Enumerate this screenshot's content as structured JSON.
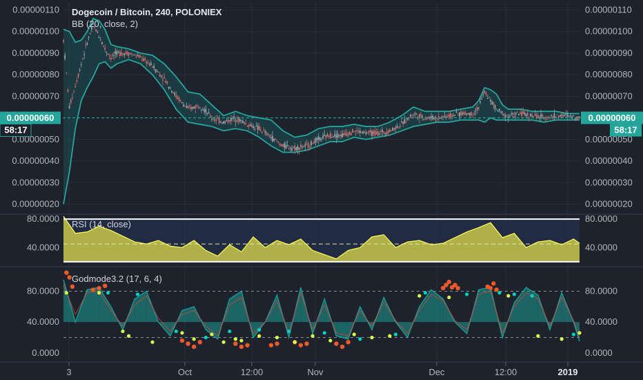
{
  "header": {
    "symbol_title": "Dogecoin / Bitcoin, 240, POLONIEX",
    "bb_label": "BB (20, close, 2)",
    "rsi_label": "RSI (14, close)",
    "godmode_label": "Godmode3.2 (17, 6, 4)"
  },
  "price_badge": {
    "price": "0.00000060",
    "countdown": "58:17",
    "color": "#26a69a"
  },
  "colors": {
    "background": "#1e222d",
    "grid": "#2a2e39",
    "text": "#b2b5be",
    "bb_band": "#26a69a",
    "bb_fill": "#1c4f52",
    "rsi_line": "#ffff5a",
    "rsi_fill": "#c8c84a",
    "rsi_levels": "#ffffff",
    "god_wave": "#1b9a93",
    "god_signal": "#d64534",
    "dot_overbought": "#f05a28",
    "dot_oversold": "#d6ff4d",
    "dot_cyan": "#00d1c1"
  },
  "x_axis": {
    "ticks": [
      "3",
      "Oct",
      "12:00",
      "Nov",
      "Dec",
      "12:00",
      "2019"
    ]
  },
  "chart_data": [
    {
      "type": "line",
      "name": "price",
      "ylim": [
        1.6e-07,
        1.13e-06
      ],
      "y_tick_labels": [
        "0.00000110",
        "0.00000100",
        "0.00000090",
        "0.00000080",
        "0.00000070",
        "0.00000050",
        "0.00000040",
        "0.00000030",
        "0.00000020"
      ],
      "y_ticks": [
        1.1e-06,
        1e-06,
        9e-07,
        8e-07,
        7e-07,
        5e-07,
        4e-07,
        3e-07,
        2e-07
      ],
      "current_price": 6e-07,
      "x": [
        0,
        2,
        4,
        6,
        8,
        10,
        12,
        14,
        16,
        18,
        22,
        26,
        30,
        34,
        38,
        42,
        46,
        50,
        54,
        58,
        62,
        66,
        70,
        74,
        78,
        82,
        86,
        90,
        94,
        98,
        102,
        106,
        110,
        114,
        118,
        122,
        126,
        130,
        134,
        138,
        140,
        142,
        144,
        146,
        148,
        150,
        154,
        158,
        162,
        166,
        170,
        174
      ],
      "series": [
        {
          "values": [
            9.6e-07,
            6.5e-07,
            7.5e-07,
            8.5e-07,
            9.5e-07,
            1.03e-06,
            9.8e-07,
            9.2e-07,
            8.8e-07,
            9e-07,
            9e-07,
            8.8e-07,
            8.4e-07,
            7.8e-07,
            7e-07,
            6.4e-07,
            6.6e-07,
            6e-07,
            5.8e-07,
            6e-07,
            5.7e-07,
            5.5e-07,
            5.1e-07,
            4.7e-07,
            4.6e-07,
            4.7e-07,
            5e-07,
            5.2e-07,
            5.2e-07,
            5.4e-07,
            5.3e-07,
            5.3e-07,
            5.4e-07,
            5.7e-07,
            6.2e-07,
            6e-07,
            6e-07,
            6.1e-07,
            6.2e-07,
            6.2e-07,
            6.5e-07,
            7.2e-07,
            6.8e-07,
            6.4e-07,
            6.2e-07,
            6.1e-07,
            6.2e-07,
            6.1e-07,
            6e-07,
            6.1e-07,
            6.1e-07,
            6e-07
          ]
        },
        {
          "name": "upper",
          "values": [
            1.01e-06,
            1e-06,
            9.5e-07,
            9.6e-07,
            1e-06,
            1.06e-06,
            1.05e-06,
            1.01e-06,
            9.4e-07,
            9.3e-07,
            9.2e-07,
            9e-07,
            8.9e-07,
            8.5e-07,
            7.9e-07,
            7.2e-07,
            7.1e-07,
            6.6e-07,
            6.1e-07,
            6.3e-07,
            6.1e-07,
            6e-07,
            5.9e-07,
            5.4e-07,
            5.1e-07,
            5.2e-07,
            5.5e-07,
            5.6e-07,
            5.6e-07,
            5.7e-07,
            5.6e-07,
            5.6e-07,
            5.8e-07,
            6.1e-07,
            6.5e-07,
            6.3e-07,
            6.3e-07,
            6.3e-07,
            6.4e-07,
            6.5e-07,
            6.8e-07,
            7.4e-07,
            7.3e-07,
            7.1e-07,
            6.6e-07,
            6.4e-07,
            6.4e-07,
            6.3e-07,
            6.3e-07,
            6.3e-07,
            6.2e-07,
            6.2e-07
          ]
        },
        {
          "name": "lower",
          "values": [
            2e-07,
            3.5e-07,
            5.5e-07,
            6.8e-07,
            7.4e-07,
            7.9e-07,
            8.5e-07,
            8.6e-07,
            8.3e-07,
            8.5e-07,
            8.7e-07,
            8.5e-07,
            8e-07,
            7.3e-07,
            6.4e-07,
            5.8e-07,
            5.7e-07,
            5.6e-07,
            5.4e-07,
            5.5e-07,
            5.4e-07,
            5.1e-07,
            4.7e-07,
            4.4e-07,
            4.4e-07,
            4.5e-07,
            4.7e-07,
            4.9e-07,
            4.9e-07,
            5.1e-07,
            5e-07,
            5.1e-07,
            5.2e-07,
            5.4e-07,
            5.6e-07,
            5.7e-07,
            5.8e-07,
            5.8e-07,
            5.9e-07,
            5.9e-07,
            5.9e-07,
            5.8e-07,
            6e-07,
            5.9e-07,
            5.9e-07,
            5.9e-07,
            5.9e-07,
            5.9e-07,
            5.8e-07,
            5.9e-07,
            5.9e-07,
            5.9e-07
          ]
        }
      ]
    },
    {
      "type": "area",
      "name": "RSI",
      "ylim": [
        15,
        85
      ],
      "y_tick_labels": [
        "80.0000",
        "40.0000"
      ],
      "y_ticks": [
        80,
        40
      ],
      "levels": [
        80,
        20
      ],
      "mid": 45,
      "x": [
        0,
        4,
        8,
        12,
        16,
        20,
        24,
        28,
        32,
        36,
        40,
        44,
        48,
        52,
        56,
        60,
        64,
        68,
        72,
        76,
        80,
        84,
        88,
        92,
        96,
        100,
        104,
        108,
        112,
        116,
        120,
        124,
        128,
        132,
        136,
        140,
        144,
        148,
        152,
        156,
        160,
        164,
        168,
        172,
        174
      ],
      "values": [
        84,
        60,
        62,
        70,
        64,
        56,
        48,
        45,
        50,
        42,
        40,
        50,
        36,
        28,
        44,
        34,
        55,
        40,
        50,
        44,
        52,
        36,
        30,
        24,
        36,
        40,
        55,
        58,
        40,
        48,
        50,
        44,
        46,
        54,
        62,
        68,
        75,
        54,
        60,
        40,
        48,
        50,
        44,
        52,
        46
      ]
    },
    {
      "type": "line",
      "name": "Godmode3.2",
      "ylim": [
        -10,
        110
      ],
      "y_tick_labels": [
        "80.0000",
        "40.0000",
        "0.0000"
      ],
      "y_ticks": [
        80,
        40,
        0
      ],
      "levels": [
        80,
        20
      ],
      "x": [
        0,
        4,
        8,
        12,
        16,
        20,
        24,
        28,
        32,
        36,
        40,
        44,
        48,
        52,
        56,
        60,
        64,
        68,
        72,
        76,
        80,
        84,
        88,
        92,
        96,
        100,
        104,
        108,
        112,
        116,
        120,
        124,
        128,
        132,
        136,
        140,
        144,
        148,
        152,
        156,
        160,
        164,
        168,
        172,
        174
      ],
      "values": [
        95,
        40,
        82,
        85,
        60,
        30,
        70,
        80,
        40,
        22,
        55,
        60,
        30,
        18,
        70,
        80,
        20,
        40,
        75,
        20,
        85,
        25,
        70,
        22,
        18,
        60,
        30,
        72,
        40,
        20,
        60,
        82,
        70,
        40,
        25,
        82,
        85,
        20,
        65,
        85,
        75,
        30,
        78,
        40,
        15
      ],
      "signal": [
        88,
        50,
        78,
        80,
        55,
        35,
        62,
        74,
        45,
        28,
        50,
        55,
        35,
        22,
        62,
        72,
        25,
        40,
        68,
        26,
        78,
        30,
        62,
        26,
        22,
        55,
        35,
        66,
        42,
        25,
        55,
        76,
        68,
        42,
        30,
        76,
        80,
        26,
        60,
        78,
        70,
        35,
        72,
        42,
        20
      ],
      "markers_overbought": [
        [
          1,
          104
        ],
        [
          2,
          98
        ],
        [
          3,
          86
        ],
        [
          10,
          82
        ],
        [
          12,
          84
        ],
        [
          14,
          87
        ],
        [
          128,
          84
        ],
        [
          129,
          88
        ],
        [
          130,
          92
        ],
        [
          131,
          85
        ],
        [
          132,
          88
        ],
        [
          133,
          84
        ],
        [
          143,
          86
        ],
        [
          144,
          84
        ],
        [
          145,
          90
        ],
        [
          146,
          82
        ]
      ],
      "markers_oversold": [
        [
          1,
          78
        ],
        [
          12,
          78
        ],
        [
          20,
          28
        ],
        [
          22,
          22
        ],
        [
          30,
          14
        ],
        [
          40,
          26
        ],
        [
          44,
          18
        ],
        [
          50,
          24
        ],
        [
          54,
          14
        ],
        [
          58,
          18
        ],
        [
          60,
          16
        ],
        [
          66,
          22
        ],
        [
          72,
          20
        ],
        [
          78,
          14
        ],
        [
          84,
          22
        ],
        [
          90,
          16
        ],
        [
          98,
          24
        ],
        [
          104,
          20
        ],
        [
          110,
          22
        ],
        [
          120,
          74
        ],
        [
          130,
          72
        ],
        [
          150,
          74
        ],
        [
          160,
          22
        ],
        [
          168,
          18
        ],
        [
          174,
          26
        ]
      ],
      "markers_cyan": [
        [
          15,
          78
        ],
        [
          25,
          76
        ],
        [
          38,
          28
        ],
        [
          48,
          20
        ],
        [
          56,
          28
        ],
        [
          66,
          30
        ],
        [
          76,
          28
        ],
        [
          88,
          26
        ],
        [
          100,
          18
        ],
        [
          112,
          24
        ],
        [
          122,
          78
        ],
        [
          136,
          76
        ],
        [
          147,
          78
        ],
        [
          152,
          76
        ],
        [
          158,
          74
        ],
        [
          172,
          24
        ]
      ],
      "markers_sell": [
        [
          40,
          16
        ],
        [
          42,
          12
        ],
        [
          44,
          8
        ],
        [
          46,
          14
        ],
        [
          58,
          12
        ],
        [
          60,
          8
        ],
        [
          62,
          10
        ],
        [
          70,
          10
        ],
        [
          72,
          12
        ],
        [
          78,
          14
        ],
        [
          80,
          10
        ],
        [
          82,
          12
        ],
        [
          92,
          12
        ],
        [
          94,
          8
        ],
        [
          96,
          14
        ]
      ]
    }
  ]
}
